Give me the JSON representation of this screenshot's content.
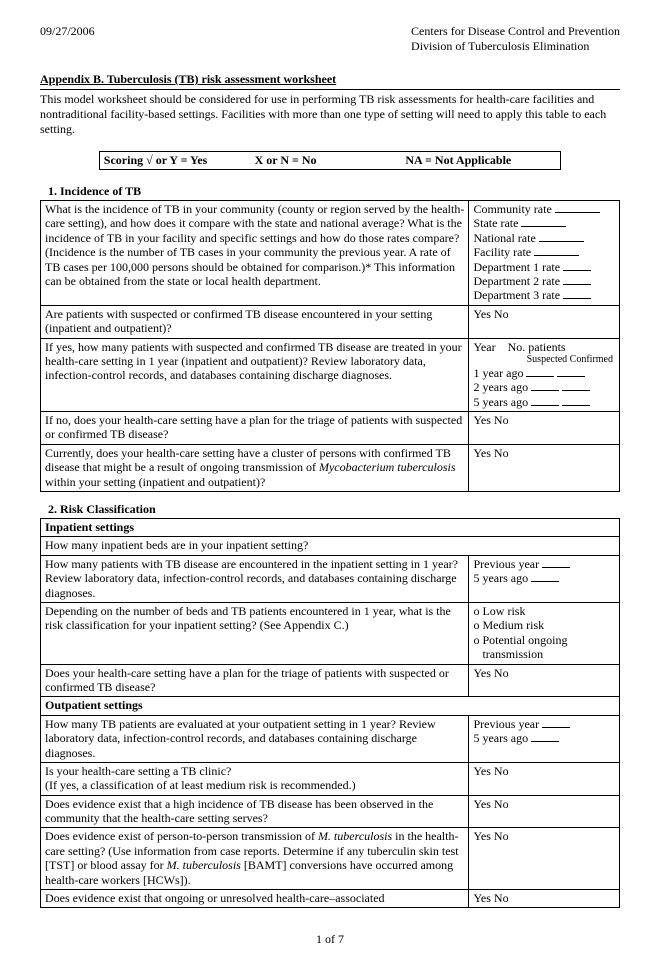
{
  "header": {
    "date": "09/27/2006",
    "org1": "Centers for Disease Control and Prevention",
    "org2": "Division of Tuberculosis Elimination"
  },
  "title": "Appendix B. Tuberculosis (TB) risk assessment worksheet",
  "intro": "This model worksheet should be considered for use in performing TB risk assessments for health-care facilities and nontraditional facility-based settings. Facilities with more than one type of setting will need to apply this table to each setting.",
  "scoring": {
    "yes": "Scoring   √ or Y = Yes",
    "no": "X or N = No",
    "na": "NA = Not Applicable"
  },
  "sections": {
    "s1": {
      "head": "1.  Incidence of TB",
      "r1q": "What is the incidence of TB in your community (county or region served by the health-care setting), and how does it compare with the state and national average? What is the incidence of TB in your facility and specific settings and how do those rates compare? (Incidence is the number of TB cases in your community the previous year. A rate of TB cases per 100,000 persons should be obtained for comparison.)* This information can be obtained from the state or local health department.",
      "r1a": [
        "Community rate",
        "State rate",
        "National rate",
        "Facility rate",
        "Department 1 rate",
        "Department 2 rate",
        "Department 3 rate"
      ],
      "r2q": "Are patients with suspected or confirmed TB disease encountered in your setting (inpatient and outpatient)?",
      "r2a": "Yes     No",
      "r3q": "If yes, how many patients with suspected and confirmed TB disease are treated in your health-care setting in 1 year (inpatient and outpatient)? Review laboratory data, infection-control records, and databases containing discharge diagnoses.",
      "r3a_head": "Year    No. patients",
      "r3a_sub": "Suspected Confirmed",
      "r3a_rows": [
        "1 year ago",
        "2 years ago",
        "5 years ago"
      ],
      "r4q": "If no, does your health-care setting have a plan for the triage of patients with suspected or confirmed TB disease?",
      "r4a": "Yes     No",
      "r5q_a": "Currently, does your health-care setting have a cluster of persons with confirmed TB disease that might be a result of ongoing transmission of ",
      "r5q_b": "Mycobacterium tuberculosis",
      "r5q_c": " within your setting (inpatient and outpatient)?",
      "r5a": "Yes     No"
    },
    "s2": {
      "head": "2.  Risk Classification",
      "sub1": "Inpatient settings",
      "ir1": "How many inpatient beds are in your inpatient setting?",
      "ir2q": "How many patients with TB disease are encountered in the inpatient setting in 1 year? Review laboratory data, infection-control records, and databases containing discharge diagnoses.",
      "ir2a": [
        "Previous year",
        "5 years ago"
      ],
      "ir3q": "Depending on the number of beds and TB patients encountered in 1 year, what is the risk classification for your inpatient setting? (See Appendix C.)",
      "ir3a": [
        "o Low risk",
        "o Medium risk",
        "o Potential ongoing",
        "   transmission"
      ],
      "ir4q": "Does your health-care setting have a plan for the triage of patients with suspected or confirmed TB disease?",
      "ir4a": "Yes     No",
      "sub2": "Outpatient settings",
      "or1q": "How many TB patients are evaluated at your outpatient setting in 1 year? Review laboratory data, infection-control records, and databases containing discharge diagnoses.",
      "or1a": [
        "Previous year",
        "5 years ago"
      ],
      "or2q": "Is your health-care setting a TB clinic?\n(If yes, a classification of at least medium risk is recommended.)",
      "or2a": "Yes   No",
      "or3q": "Does evidence exist that a high incidence of TB disease has been observed in the community that the health-care setting serves?",
      "or3a": "Yes   No",
      "or4q_a": "Does evidence exist of person-to-person transmission of ",
      "or4q_b": "M. tuberculosis",
      "or4q_c": " in the health-care setting? (Use information from case reports. Determine if any tuberculin skin test [TST] or blood assay for ",
      "or4q_d": "M. tuberculosis",
      "or4q_e": " [BAMT] conversions have occurred among health-care workers [HCWs]).",
      "or4a": "Yes   No",
      "or5q": "Does evidence exist that ongoing or unresolved health-care–associated",
      "or5a": "Yes   No"
    }
  },
  "footer": "1 of 7"
}
